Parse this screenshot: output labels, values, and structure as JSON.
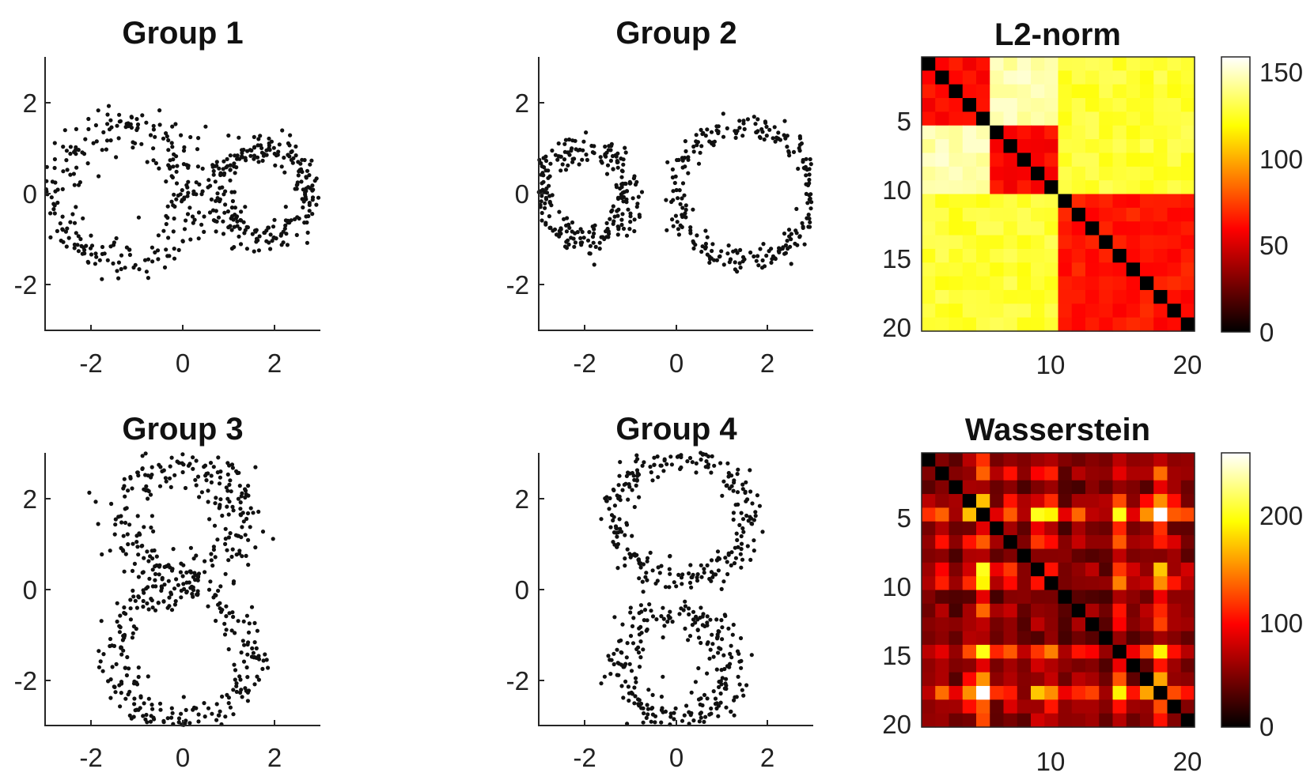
{
  "figure": {
    "background": "#ffffff",
    "point_color": "#111111"
  },
  "chart_data": [
    {
      "type": "scatter",
      "title": "Group 1",
      "shape": "two rings side by side (horizontal figure-eight)",
      "xlim": [
        -3,
        3
      ],
      "ylim": [
        -3,
        3
      ],
      "xticks": [
        "-2",
        "0",
        "2"
      ],
      "yticks": [
        "2",
        "0",
        "-2"
      ],
      "xtick_values": [
        -2,
        0,
        2
      ],
      "ytick_values": [
        2,
        0,
        -2
      ],
      "rings": [
        {
          "cx": -1.3,
          "cy": 0.0,
          "r": 1.5,
          "noise": 0.25,
          "n": 270
        },
        {
          "cx": 1.8,
          "cy": 0.0,
          "r": 1.0,
          "noise": 0.17,
          "n": 250
        }
      ]
    },
    {
      "type": "scatter",
      "title": "Group 2",
      "shape": "two rings side by side (horizontal figure-eight)",
      "xlim": [
        -3,
        3
      ],
      "ylim": [
        -3,
        3
      ],
      "xticks": [
        "-2",
        "0",
        "2"
      ],
      "yticks": [
        "2",
        "0",
        "-2"
      ],
      "xtick_values": [
        -2,
        0,
        2
      ],
      "ytick_values": [
        2,
        0,
        -2
      ],
      "rings": [
        {
          "cx": -2.0,
          "cy": 0.0,
          "r": 1.0,
          "noise": 0.17,
          "n": 260
        },
        {
          "cx": 1.5,
          "cy": 0.0,
          "r": 1.5,
          "noise": 0.14,
          "n": 260
        }
      ]
    },
    {
      "type": "heatmap",
      "title": "L2-norm",
      "rows": 20,
      "cols": 20,
      "yticks": [
        "5",
        "10",
        "15",
        "20"
      ],
      "ytick_values": [
        5,
        10,
        15,
        20
      ],
      "xticks": [
        "10",
        "20"
      ],
      "xtick_values": [
        10,
        20
      ],
      "colorbar": {
        "min": 0,
        "max": 160,
        "ticks": [
          "150",
          "100",
          "50",
          "0"
        ],
        "tick_values": [
          150,
          100,
          50,
          0
        ]
      },
      "blocks": [
        {
          "rows": [
            1,
            5
          ],
          "cols": [
            1,
            5
          ],
          "value": 62
        },
        {
          "rows": [
            1,
            5
          ],
          "cols": [
            6,
            10
          ],
          "value": 148
        },
        {
          "rows": [
            6,
            10
          ],
          "cols": [
            1,
            5
          ],
          "value": 148
        },
        {
          "rows": [
            6,
            10
          ],
          "cols": [
            6,
            10
          ],
          "value": 62
        },
        {
          "rows": [
            1,
            10
          ],
          "cols": [
            11,
            20
          ],
          "value": 128
        },
        {
          "rows": [
            11,
            20
          ],
          "cols": [
            1,
            10
          ],
          "value": 128
        },
        {
          "rows": [
            11,
            20
          ],
          "cols": [
            11,
            20
          ],
          "value": 65
        }
      ],
      "diagonal": 0
    },
    {
      "type": "scatter",
      "title": "Group 3",
      "shape": "two rings stacked vertically (vertical figure-eight)",
      "xlim": [
        -3,
        3
      ],
      "ylim": [
        -3,
        3
      ],
      "xticks": [
        "-2",
        "0",
        "2"
      ],
      "yticks": [
        "2",
        "0",
        "-2"
      ],
      "xtick_values": [
        -2,
        0,
        2
      ],
      "ytick_values": [
        2,
        0,
        -2
      ],
      "rings": [
        {
          "cx": 0.0,
          "cy": 1.5,
          "r": 1.3,
          "noise": 0.28,
          "n": 270
        },
        {
          "cx": 0.0,
          "cy": -1.5,
          "r": 1.5,
          "noise": 0.22,
          "n": 260
        }
      ]
    },
    {
      "type": "scatter",
      "title": "Group 4",
      "shape": "two rings stacked vertically (vertical figure-eight)",
      "xlim": [
        -3,
        3
      ],
      "ylim": [
        -3,
        3
      ],
      "xticks": [
        "-2",
        "0",
        "2"
      ],
      "yticks": [
        "2",
        "0",
        "-2"
      ],
      "xtick_values": [
        -2,
        0,
        2
      ],
      "ytick_values": [
        2,
        0,
        -2
      ],
      "rings": [
        {
          "cx": 0.1,
          "cy": 1.6,
          "r": 1.4,
          "noise": 0.18,
          "n": 270
        },
        {
          "cx": 0.0,
          "cy": -1.7,
          "r": 1.2,
          "noise": 0.25,
          "n": 260
        }
      ]
    },
    {
      "type": "heatmap",
      "title": "Wasserstein",
      "rows": 20,
      "cols": 20,
      "yticks": [
        "5",
        "10",
        "15",
        "20"
      ],
      "ytick_values": [
        5,
        10,
        15,
        20
      ],
      "xticks": [
        "10",
        "20"
      ],
      "xtick_values": [
        10,
        20
      ],
      "colorbar": {
        "min": 0,
        "max": 250,
        "ticks": [
          "200",
          "100",
          "0"
        ],
        "tick_values": [
          200,
          100,
          0
        ]
      },
      "row_weights": [
        0.3,
        0.4,
        0.2,
        0.5,
        1.0,
        0.3,
        0.5,
        0.2,
        0.5,
        0.6,
        0.2,
        0.3,
        0.3,
        0.2,
        0.8,
        0.3,
        0.4,
        1.0,
        0.4,
        0.3
      ],
      "diagonal": 0
    }
  ]
}
